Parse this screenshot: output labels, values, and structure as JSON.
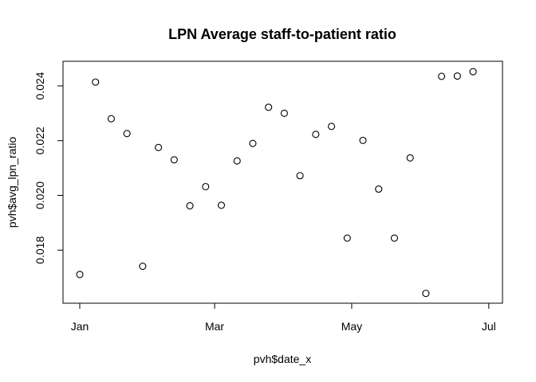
{
  "chart_data": {
    "type": "scatter",
    "title": "LPN Average staff-to-patient ratio",
    "xlabel": "pvh$date_x",
    "ylabel": "pvh$avg_lpn_ratio",
    "x_ticks": [
      {
        "value": "2024-01-01",
        "label": "Jan"
      },
      {
        "value": "2024-03-01",
        "label": "Mar"
      },
      {
        "value": "2024-05-01",
        "label": "May"
      },
      {
        "value": "2024-07-01",
        "label": "Jul"
      }
    ],
    "y_ticks": [
      0.018,
      0.02,
      0.022,
      0.024
    ],
    "y_tick_labels": [
      "0.018",
      "0.020",
      "0.022",
      "0.024"
    ],
    "xlim": [
      "2024-01-01",
      "2024-06-30"
    ],
    "ylim": [
      0.01638,
      0.02458
    ],
    "grid": false,
    "marker": "open-circle",
    "points": [
      {
        "x": "2024-01-01",
        "y": 0.01711
      },
      {
        "x": "2024-01-08",
        "y": 0.02414
      },
      {
        "x": "2024-01-15",
        "y": 0.0228
      },
      {
        "x": "2024-01-22",
        "y": 0.02226
      },
      {
        "x": "2024-01-29",
        "y": 0.01741
      },
      {
        "x": "2024-02-05",
        "y": 0.02175
      },
      {
        "x": "2024-02-12",
        "y": 0.0213
      },
      {
        "x": "2024-02-19",
        "y": 0.01962
      },
      {
        "x": "2024-02-26",
        "y": 0.02032
      },
      {
        "x": "2024-03-04",
        "y": 0.01964
      },
      {
        "x": "2024-03-11",
        "y": 0.02126
      },
      {
        "x": "2024-03-18",
        "y": 0.0219
      },
      {
        "x": "2024-03-25",
        "y": 0.02322
      },
      {
        "x": "2024-04-01",
        "y": 0.023
      },
      {
        "x": "2024-04-08",
        "y": 0.02072
      },
      {
        "x": "2024-04-15",
        "y": 0.02223
      },
      {
        "x": "2024-04-22",
        "y": 0.02252
      },
      {
        "x": "2024-04-29",
        "y": 0.01844
      },
      {
        "x": "2024-05-06",
        "y": 0.02201
      },
      {
        "x": "2024-05-13",
        "y": 0.02023
      },
      {
        "x": "2024-05-20",
        "y": 0.01844
      },
      {
        "x": "2024-05-27",
        "y": 0.02137
      },
      {
        "x": "2024-06-03",
        "y": 0.01642
      },
      {
        "x": "2024-06-10",
        "y": 0.02435
      },
      {
        "x": "2024-06-17",
        "y": 0.02436
      },
      {
        "x": "2024-06-24",
        "y": 0.02452
      }
    ]
  }
}
